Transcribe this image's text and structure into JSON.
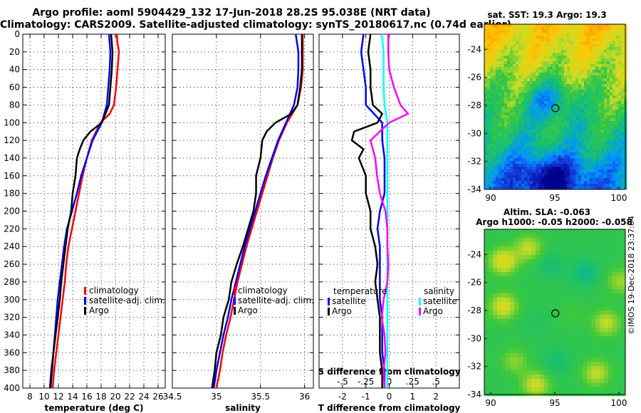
{
  "title_line1": "Argo profile: aoml 5904429_132 17-Jun-2018 28.2S 95.038E (NRT data)",
  "title_line2": "Climatology: CARS2009. Satellite-adjusted climatology: synTS_20180617.nc (0.74d earlier)",
  "credit": "©IMOS 19-Dec-2018 23:37:04",
  "colors": {
    "climatology": "#ff0000",
    "satellite": "#0000ff",
    "argo": "#000000",
    "sal_satellite": "#00ffff",
    "sal_argo": "#ff00ff"
  },
  "chart_data": [
    {
      "type": "line",
      "name": "temperature",
      "xlabel": "temperature (deg C)",
      "ylabel": "",
      "xlim": [
        7,
        27
      ],
      "ylim": [
        400,
        0
      ],
      "xticks": [
        8,
        10,
        12,
        14,
        16,
        18,
        20,
        22,
        24,
        26
      ],
      "yticks": [
        0,
        20,
        40,
        60,
        80,
        100,
        120,
        140,
        160,
        180,
        200,
        220,
        240,
        260,
        280,
        300,
        320,
        340,
        360,
        380,
        400
      ],
      "legend": [
        "climatology",
        "satellite-adj. clim.",
        "Argo"
      ],
      "series": [
        {
          "name": "climatology",
          "depth": [
            0,
            10,
            20,
            40,
            60,
            80,
            90,
            100,
            120,
            140,
            160,
            180,
            200,
            220,
            240,
            260,
            280,
            300,
            320,
            340,
            360,
            380,
            400
          ],
          "values": [
            20.2,
            20.3,
            20.5,
            20.3,
            20.1,
            19.8,
            19.2,
            17.9,
            16.7,
            16.0,
            15.4,
            14.9,
            14.4,
            13.9,
            13.4,
            13.1,
            12.9,
            12.6,
            12.3,
            12.0,
            11.7,
            11.4,
            11.2
          ]
        },
        {
          "name": "satellite-adj. clim.",
          "depth": [
            0,
            20,
            40,
            60,
            80,
            100,
            120,
            140,
            160,
            180,
            200,
            220,
            240,
            260,
            280,
            300,
            320,
            340,
            360,
            380,
            400
          ],
          "values": [
            19.1,
            19.3,
            19.2,
            19.0,
            18.8,
            18.1,
            16.8,
            16.0,
            15.2,
            14.6,
            13.9,
            13.2,
            12.8,
            12.5,
            12.2,
            11.9,
            11.7,
            11.5,
            11.3,
            11.0,
            10.8
          ]
        },
        {
          "name": "Argo",
          "depth": [
            0,
            20,
            40,
            60,
            80,
            100,
            110,
            120,
            130,
            140,
            160,
            180,
            200,
            220,
            240,
            260,
            280,
            300,
            320,
            340,
            360,
            380,
            400
          ],
          "values": [
            19.4,
            19.6,
            19.5,
            19.3,
            19.1,
            18.1,
            16.5,
            15.5,
            15.0,
            14.6,
            14.4,
            14.0,
            13.8,
            13.3,
            13.0,
            12.7,
            12.4,
            12.2,
            11.9,
            11.6,
            11.3,
            11.1,
            10.9
          ]
        }
      ]
    },
    {
      "type": "line",
      "name": "salinity",
      "xlabel": "salinity",
      "ylabel": "",
      "xlim": [
        34.5,
        36.1
      ],
      "ylim": [
        400,
        0
      ],
      "xticks": [
        34.5,
        35,
        35.5,
        36
      ],
      "legend": [
        "climatology",
        "satellite-adj. clim.",
        "Argo"
      ],
      "series": [
        {
          "name": "climatology",
          "depth": [
            0,
            20,
            40,
            60,
            80,
            100,
            120,
            140,
            160,
            180,
            200,
            220,
            240,
            260,
            280,
            300,
            320,
            340,
            360,
            380,
            400
          ],
          "values": [
            35.98,
            35.98,
            35.98,
            35.96,
            35.92,
            35.8,
            35.71,
            35.64,
            35.58,
            35.52,
            35.46,
            35.4,
            35.34,
            35.29,
            35.24,
            35.2,
            35.16,
            35.11,
            35.07,
            35.04,
            35.0
          ]
        },
        {
          "name": "satellite-adj. clim.",
          "depth": [
            0,
            20,
            40,
            60,
            80,
            100,
            120,
            140,
            160,
            180,
            200,
            220,
            240,
            260,
            280,
            300,
            320,
            340,
            360,
            380,
            400
          ],
          "values": [
            35.9,
            35.93,
            35.93,
            35.92,
            35.88,
            35.79,
            35.7,
            35.63,
            35.56,
            35.5,
            35.44,
            35.38,
            35.32,
            35.27,
            35.22,
            35.17,
            35.13,
            35.08,
            35.04,
            35.0,
            34.97
          ]
        },
        {
          "name": "Argo",
          "depth": [
            0,
            20,
            40,
            60,
            80,
            90,
            100,
            110,
            120,
            140,
            160,
            180,
            200,
            220,
            240,
            260,
            280,
            300,
            320,
            340,
            360,
            380,
            400
          ],
          "values": [
            35.97,
            35.97,
            35.97,
            35.95,
            35.92,
            35.85,
            35.67,
            35.57,
            35.52,
            35.5,
            35.45,
            35.45,
            35.42,
            35.36,
            35.3,
            35.23,
            35.17,
            35.14,
            35.08,
            35.05,
            35.0,
            34.98,
            34.95
          ]
        }
      ]
    },
    {
      "type": "line",
      "name": "differences",
      "xlabel": "T difference from climatology",
      "x2label": "S difference from climatology",
      "xlim": [
        -3,
        3
      ],
      "x2lim": [
        -0.75,
        0.75
      ],
      "ylim": [
        400,
        0
      ],
      "xticks": [
        -2,
        -1,
        0,
        1,
        2
      ],
      "x2ticks": [
        -0.5,
        -0.25,
        0,
        0.25,
        0.5
      ],
      "legend_temperature_title": "temperature",
      "legend_salinity_title": "salinity",
      "legend": [
        "satellite",
        "Argo"
      ],
      "series": [
        {
          "name": "T satellite",
          "depth": [
            0,
            20,
            40,
            60,
            80,
            100,
            120,
            140,
            160,
            180,
            200,
            220,
            240,
            260,
            280,
            300,
            320,
            340,
            360,
            380,
            400
          ],
          "values": [
            -1.1,
            -1.2,
            -1.1,
            -1.0,
            -1.0,
            -0.3,
            -0.3,
            -0.2,
            -0.2,
            -0.2,
            -0.4,
            -0.5,
            -0.4,
            -0.4,
            -0.4,
            -0.4,
            -0.3,
            -0.3,
            -0.3,
            -0.2,
            -0.2
          ]
        },
        {
          "name": "S satellite",
          "depth": [
            0,
            20,
            40,
            60,
            80,
            100,
            120,
            140,
            160,
            180,
            200,
            220,
            240,
            260,
            280,
            300,
            320,
            340,
            360,
            380,
            400
          ],
          "values": [
            -0.08,
            -0.06,
            -0.06,
            -0.06,
            -0.05,
            -0.02,
            -0.02,
            -0.02,
            -0.02,
            -0.02,
            -0.02,
            -0.02,
            -0.02,
            -0.02,
            -0.02,
            -0.02,
            -0.02,
            -0.02,
            -0.02,
            -0.02,
            -0.02
          ]
        },
        {
          "name": "T Argo",
          "depth": [
            0,
            20,
            40,
            60,
            80,
            90,
            100,
            110,
            120,
            130,
            140,
            160,
            180,
            200,
            220,
            240,
            260,
            280,
            300,
            320,
            340,
            360,
            380,
            400
          ],
          "values": [
            -0.8,
            -0.9,
            -0.8,
            -0.8,
            -0.7,
            -0.3,
            -0.5,
            -1.5,
            -1.6,
            -1.1,
            -1.3,
            -1.0,
            -1.0,
            -0.8,
            -0.8,
            -0.6,
            -0.5,
            -0.6,
            -0.5,
            -0.4,
            -0.4,
            -0.4,
            -0.3,
            -0.3
          ]
        },
        {
          "name": "S Argo",
          "depth": [
            0,
            20,
            40,
            60,
            80,
            90,
            100,
            120,
            140,
            160,
            180,
            200,
            220,
            240,
            260,
            280,
            300,
            320,
            340,
            360,
            380,
            400
          ],
          "values": [
            -0.01,
            -0.01,
            0.0,
            0.05,
            0.12,
            0.2,
            0.0,
            -0.2,
            -0.15,
            -0.13,
            -0.1,
            -0.04,
            -0.02,
            -0.02,
            -0.01,
            -0.02,
            -0.06,
            -0.08,
            -0.05,
            -0.04,
            -0.06,
            -0.05
          ]
        }
      ]
    },
    {
      "type": "heatmap",
      "name": "sst_map",
      "title": "sat. SST: 19.3 Argo: 19.3",
      "xlim": [
        89.5,
        100.5
      ],
      "ylim": [
        -34,
        -22.2
      ],
      "xticks": [
        90,
        95,
        100
      ],
      "yticks": [
        -24,
        -26,
        -28,
        -30,
        -32,
        -34
      ],
      "marker": {
        "x": 95.038,
        "y": -28.2
      }
    },
    {
      "type": "heatmap",
      "name": "sla_map",
      "title": "Altim. SLA: -0.063",
      "subtitle": "Argo h1000: -0.05 h2000: -0.058",
      "xlim": [
        89.5,
        100.5
      ],
      "ylim": [
        -34,
        -22.2
      ],
      "xticks": [
        90,
        95,
        100
      ],
      "yticks": [
        -24,
        -26,
        -28,
        -30,
        -32,
        -34
      ],
      "marker": {
        "x": 95.038,
        "y": -28.2
      }
    }
  ]
}
